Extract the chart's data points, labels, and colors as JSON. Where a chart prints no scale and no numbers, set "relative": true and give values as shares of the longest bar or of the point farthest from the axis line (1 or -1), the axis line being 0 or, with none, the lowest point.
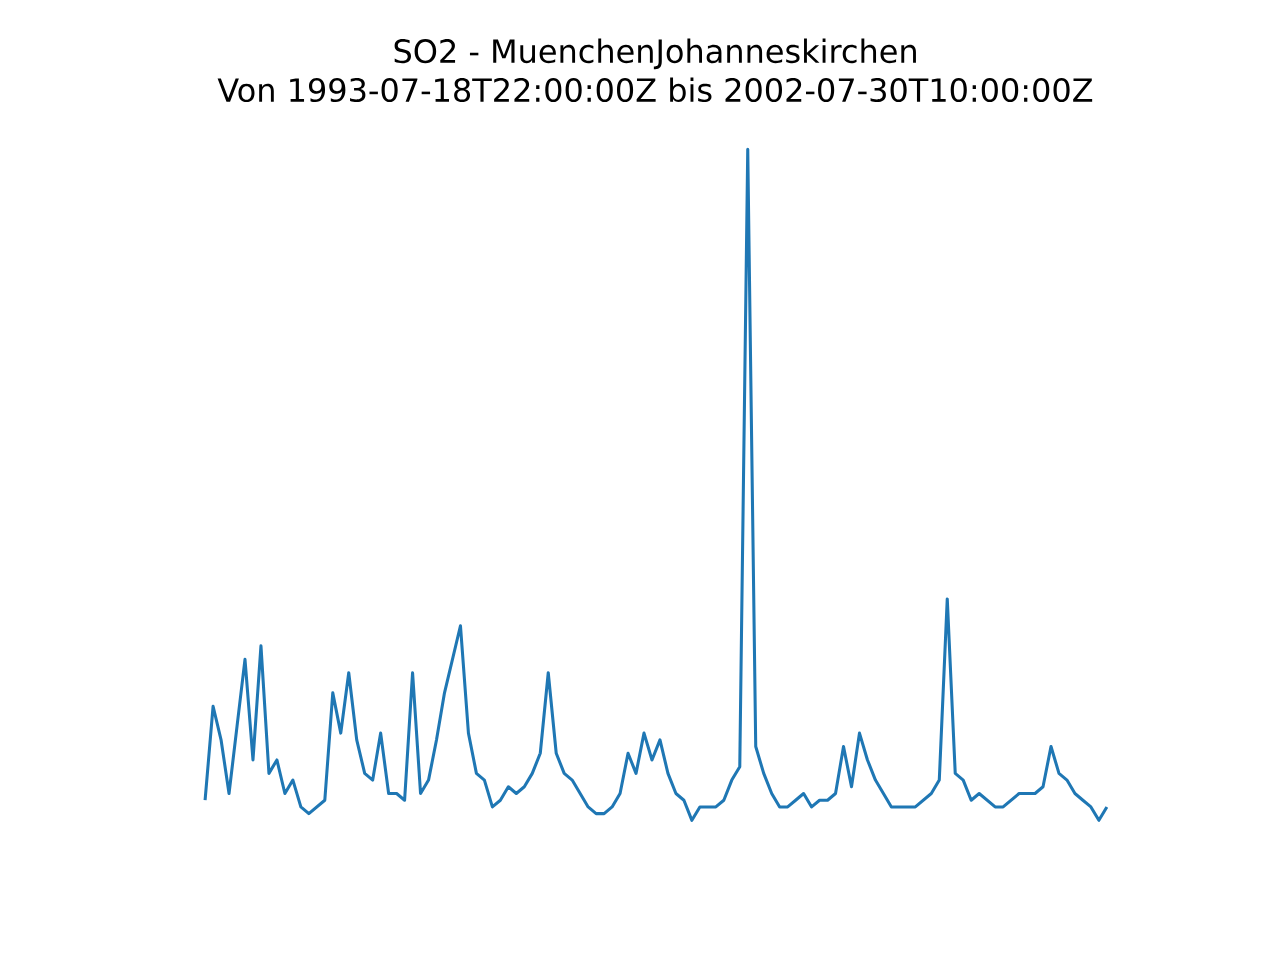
{
  "chart_data": {
    "type": "line",
    "title": "SO2 - MuenchenJohanneskirchen",
    "subtitle": "Von 1993-07-18T22:00:00Z bis 2002-07-30T10:00:00Z",
    "relative": true,
    "categories": [
      null,
      null,
      null,
      null,
      null,
      null,
      null,
      null,
      null,
      null,
      null,
      null,
      null,
      null,
      null,
      null,
      null,
      null,
      null,
      null,
      null,
      null,
      null,
      null,
      null,
      null,
      null,
      null,
      null,
      null,
      null,
      null,
      null,
      null,
      null,
      null,
      null,
      null,
      null,
      null,
      null,
      null,
      null,
      null,
      null,
      null,
      null,
      null,
      null,
      null,
      null,
      null,
      null,
      null,
      null,
      null,
      null,
      null,
      null,
      null,
      null,
      null,
      null,
      null,
      null,
      null,
      null,
      null,
      null,
      null,
      null,
      null,
      null,
      null,
      null,
      null,
      null,
      null,
      null,
      null,
      null,
      null,
      null,
      null,
      null,
      null,
      null,
      null,
      null,
      null,
      null,
      null,
      null,
      null,
      null,
      null,
      null,
      null,
      null,
      null,
      null,
      null,
      null,
      null,
      null,
      null,
      null,
      null,
      null,
      null,
      null,
      null,
      null,
      null
    ],
    "series": [
      {
        "color": "#1f77b4",
        "values": [
          0.03,
          0.17,
          0.12,
          0.04,
          0.14,
          0.24,
          0.09,
          0.26,
          0.07,
          0.09,
          0.04,
          0.06,
          0.02,
          0.01,
          0.02,
          0.03,
          0.19,
          0.13,
          0.22,
          0.12,
          0.07,
          0.06,
          0.13,
          0.04,
          0.04,
          0.03,
          0.22,
          0.04,
          0.06,
          0.12,
          0.19,
          0.24,
          0.29,
          0.13,
          0.07,
          0.06,
          0.02,
          0.03,
          0.05,
          0.04,
          0.05,
          0.07,
          0.1,
          0.22,
          0.1,
          0.07,
          0.06,
          0.04,
          0.02,
          0.01,
          0.01,
          0.02,
          0.04,
          0.1,
          0.07,
          0.13,
          0.09,
          0.12,
          0.07,
          0.04,
          0.03,
          0,
          0.02,
          0.02,
          0.02,
          0.03,
          0.06,
          0.08,
          1,
          0.11,
          0.07,
          0.04,
          0.02,
          0.02,
          0.03,
          0.04,
          0.02,
          0.03,
          0.03,
          0.04,
          0.11,
          0.05,
          0.13,
          0.09,
          0.06,
          0.04,
          0.02,
          0.02,
          0.02,
          0.02,
          0.03,
          0.04,
          0.06,
          0.33,
          0.07,
          0.06,
          0.03,
          0.04,
          0.03,
          0.02,
          0.02,
          0.03,
          0.04,
          0.04,
          0.04,
          0.05,
          0.11,
          0.07,
          0.06,
          0.04,
          0.03,
          0.02,
          0,
          0.02
        ]
      }
    ]
  }
}
